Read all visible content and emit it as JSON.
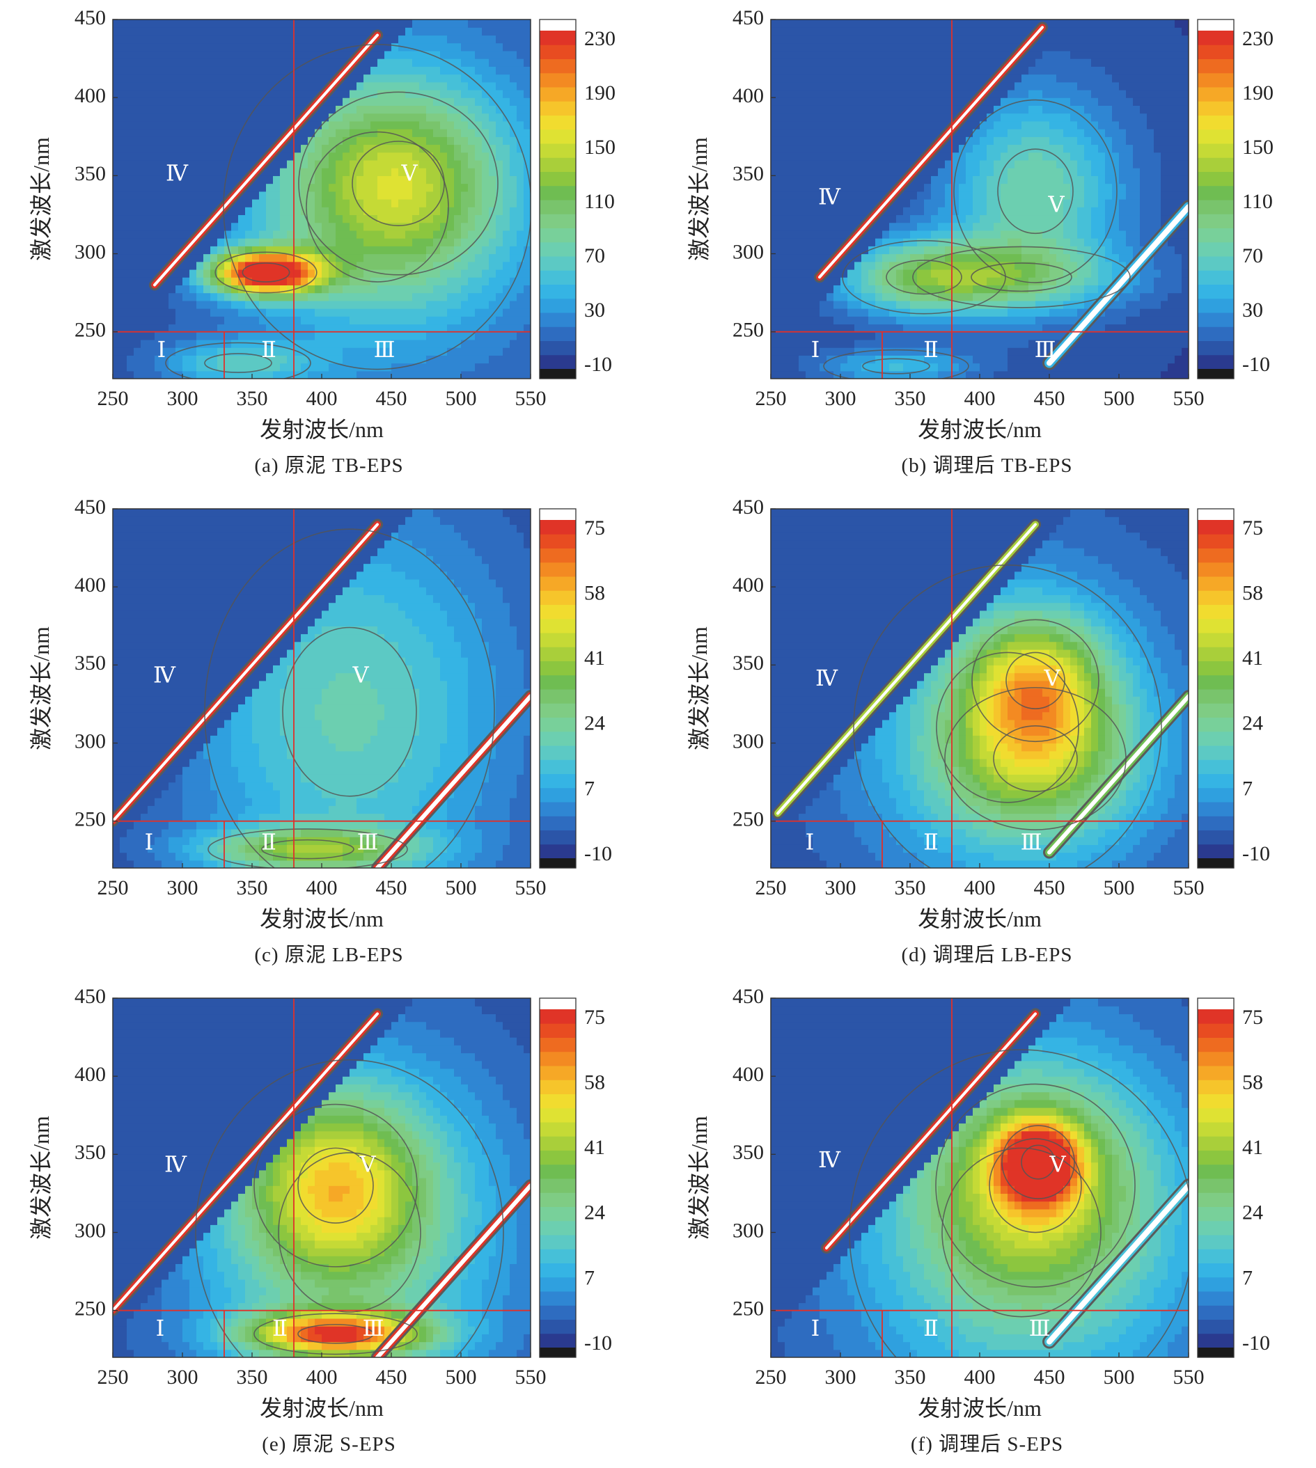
{
  "chart_data": [
    {
      "id": "a",
      "type": "heatmap",
      "caption": "(a) 原泥 TB-EPS",
      "xlabel": "发射波长/nm",
      "ylabel": "激发波长/nm",
      "xlim": [
        250,
        550
      ],
      "ylim": [
        220,
        450
      ],
      "xticks": [
        "250",
        "300",
        "350",
        "400",
        "450",
        "500",
        "550"
      ],
      "yticks": [
        "250",
        "300",
        "350",
        "400",
        "450"
      ],
      "colorbar": {
        "range": [
          -10,
          230
        ],
        "ticks": [
          "230",
          "190",
          "150",
          "110",
          "70",
          "30",
          "-10"
        ]
      },
      "divider_lines": {
        "excitation": 250,
        "emission_I_II": 330,
        "emission_II_III": 380
      },
      "regions": [
        {
          "label": "Ⅰ",
          "x": 285,
          "y": 237
        },
        {
          "label": "Ⅱ",
          "x": 362,
          "y": 237
        },
        {
          "label": "Ⅲ",
          "x": 445,
          "y": 237
        },
        {
          "label": "Ⅳ",
          "x": 296,
          "y": 350
        },
        {
          "label": "Ⅴ",
          "x": 463,
          "y": 350
        }
      ],
      "peaks": [
        {
          "ex": 288,
          "em": 360,
          "intensity": 225,
          "sx": 28,
          "sy": 10
        },
        {
          "ex": 345,
          "em": 455,
          "intensity": 85,
          "sx": 55,
          "sy": 45
        },
        {
          "ex": 330,
          "em": 440,
          "intensity": 50,
          "sx": 85,
          "sy": 80
        },
        {
          "ex": 230,
          "em": 340,
          "intensity": 45,
          "sx": 40,
          "sy": 10
        }
      ],
      "rayleigh": [
        {
          "offset": 0,
          "width": 6,
          "intensity": 240,
          "x0": 280,
          "x1": 440
        }
      ]
    },
    {
      "id": "b",
      "type": "heatmap",
      "caption": "(b) 调理后 TB-EPS",
      "xlabel": "发射波长/nm",
      "ylabel": "激发波长/nm",
      "xlim": [
        250,
        550
      ],
      "ylim": [
        220,
        450
      ],
      "xticks": [
        "250",
        "300",
        "350",
        "400",
        "450",
        "500",
        "550"
      ],
      "yticks": [
        "250",
        "300",
        "350",
        "400",
        "450"
      ],
      "colorbar": {
        "range": [
          -10,
          230
        ],
        "ticks": [
          "230",
          "190",
          "150",
          "110",
          "70",
          "30",
          "-10"
        ]
      },
      "divider_lines": {
        "excitation": 250,
        "emission_I_II": 330,
        "emission_II_III": 380
      },
      "regions": [
        {
          "label": "Ⅰ",
          "x": 282,
          "y": 237
        },
        {
          "label": "Ⅱ",
          "x": 365,
          "y": 237
        },
        {
          "label": "Ⅲ",
          "x": 447,
          "y": 237
        },
        {
          "label": "Ⅳ",
          "x": 292,
          "y": 335
        },
        {
          "label": "Ⅴ",
          "x": 455,
          "y": 330
        }
      ],
      "peaks": [
        {
          "ex": 285,
          "em": 360,
          "intensity": 80,
          "sx": 45,
          "sy": 18
        },
        {
          "ex": 340,
          "em": 440,
          "intensity": 70,
          "sx": 45,
          "sy": 45
        },
        {
          "ex": 285,
          "em": 430,
          "intensity": 45,
          "sx": 60,
          "sy": 15
        },
        {
          "ex": 228,
          "em": 340,
          "intensity": 40,
          "sx": 40,
          "sy": 8
        }
      ],
      "rayleigh": [
        {
          "offset": 0,
          "width": 6,
          "intensity": 240,
          "x0": 285,
          "x1": 445
        },
        {
          "offset": -220,
          "width": 10,
          "intensity": 40,
          "x0": 450,
          "x1": 550
        }
      ]
    },
    {
      "id": "c",
      "type": "heatmap",
      "caption": "(c) 原泥 LB-EPS",
      "xlabel": "发射波长/nm",
      "ylabel": "激发波长/nm",
      "xlim": [
        250,
        550
      ],
      "ylim": [
        220,
        450
      ],
      "xticks": [
        "250",
        "300",
        "350",
        "400",
        "450",
        "500",
        "550"
      ],
      "yticks": [
        "250",
        "300",
        "350",
        "400",
        "450"
      ],
      "colorbar": {
        "range": [
          -10,
          75
        ],
        "ticks": [
          "75",
          "58",
          "41",
          "24",
          "7",
          "-10"
        ]
      },
      "divider_lines": {
        "excitation": 250,
        "emission_I_II": 330,
        "emission_II_III": 380
      },
      "regions": [
        {
          "label": "Ⅰ",
          "x": 276,
          "y": 235
        },
        {
          "label": "Ⅱ",
          "x": 362,
          "y": 235
        },
        {
          "label": "Ⅲ",
          "x": 433,
          "y": 235
        },
        {
          "label": "Ⅳ",
          "x": 287,
          "y": 342
        },
        {
          "label": "Ⅴ",
          "x": 428,
          "y": 342
        }
      ],
      "peaks": [
        {
          "ex": 320,
          "em": 420,
          "intensity": 16,
          "sx": 80,
          "sy": 90
        },
        {
          "ex": 232,
          "em": 390,
          "intensity": 24,
          "sx": 55,
          "sy": 10
        }
      ],
      "rayleigh": [
        {
          "offset": 0,
          "width": 6,
          "intensity": 78,
          "x0": 250,
          "x1": 440
        },
        {
          "offset": -220,
          "width": 8,
          "intensity": 78,
          "x0": 440,
          "x1": 550
        }
      ]
    },
    {
      "id": "d",
      "type": "heatmap",
      "caption": "(d) 调理后 LB-EPS",
      "xlabel": "发射波长/nm",
      "ylabel": "激发波长/nm",
      "xlim": [
        250,
        550
      ],
      "ylim": [
        220,
        450
      ],
      "xticks": [
        "250",
        "300",
        "350",
        "400",
        "450",
        "500",
        "550"
      ],
      "yticks": [
        "250",
        "300",
        "350",
        "400",
        "450"
      ],
      "colorbar": {
        "range": [
          -10,
          75
        ],
        "ticks": [
          "75",
          "58",
          "41",
          "24",
          "7",
          "-10"
        ]
      },
      "divider_lines": {
        "excitation": 250,
        "emission_I_II": 330,
        "emission_II_III": 380
      },
      "regions": [
        {
          "label": "Ⅰ",
          "x": 278,
          "y": 235
        },
        {
          "label": "Ⅱ",
          "x": 365,
          "y": 235
        },
        {
          "label": "Ⅲ",
          "x": 437,
          "y": 235
        },
        {
          "label": "Ⅳ",
          "x": 290,
          "y": 340
        },
        {
          "label": "Ⅴ",
          "x": 452,
          "y": 340
        }
      ],
      "peaks": [
        {
          "ex": 340,
          "em": 440,
          "intensity": 28,
          "sx": 35,
          "sy": 30
        },
        {
          "ex": 290,
          "em": 440,
          "intensity": 20,
          "sx": 50,
          "sy": 35
        },
        {
          "ex": 310,
          "em": 420,
          "intensity": 12,
          "sx": 85,
          "sy": 80
        }
      ],
      "rayleigh": [
        {
          "offset": 0,
          "width": 6,
          "intensity": 40,
          "x0": 255,
          "x1": 440
        },
        {
          "offset": -220,
          "width": 8,
          "intensity": 35,
          "x0": 450,
          "x1": 550
        }
      ]
    },
    {
      "id": "e",
      "type": "heatmap",
      "caption": "(e) 原泥 S-EPS",
      "xlabel": "发射波长/nm",
      "ylabel": "激发波长/nm",
      "xlim": [
        250,
        550
      ],
      "ylim": [
        220,
        450
      ],
      "xticks": [
        "250",
        "300",
        "350",
        "400",
        "450",
        "500",
        "550"
      ],
      "yticks": [
        "250",
        "300",
        "350",
        "400",
        "450"
      ],
      "colorbar": {
        "range": [
          -10,
          75
        ],
        "ticks": [
          "75",
          "58",
          "41",
          "24",
          "7",
          "-10"
        ]
      },
      "divider_lines": {
        "excitation": 250,
        "emission_I_II": 330,
        "emission_II_III": 380
      },
      "regions": [
        {
          "label": "Ⅰ",
          "x": 284,
          "y": 237
        },
        {
          "label": "Ⅱ",
          "x": 370,
          "y": 237
        },
        {
          "label": "Ⅲ",
          "x": 437,
          "y": 237
        },
        {
          "label": "Ⅳ",
          "x": 295,
          "y": 342
        },
        {
          "label": "Ⅴ",
          "x": 433,
          "y": 342
        }
      ],
      "peaks": [
        {
          "ex": 330,
          "em": 410,
          "intensity": 28,
          "sx": 45,
          "sy": 40
        },
        {
          "ex": 300,
          "em": 420,
          "intensity": 18,
          "sx": 85,
          "sy": 85
        },
        {
          "ex": 235,
          "em": 410,
          "intensity": 50,
          "sx": 45,
          "sy": 10
        }
      ],
      "rayleigh": [
        {
          "offset": 0,
          "width": 6,
          "intensity": 78,
          "x0": 250,
          "x1": 440
        },
        {
          "offset": -220,
          "width": 8,
          "intensity": 78,
          "x0": 440,
          "x1": 550
        }
      ]
    },
    {
      "id": "f",
      "type": "heatmap",
      "caption": "(f) 调理后 S-EPS",
      "xlabel": "发射波长/nm",
      "ylabel": "激发波长/nm",
      "xlim": [
        250,
        550
      ],
      "ylim": [
        220,
        450
      ],
      "xticks": [
        "250",
        "300",
        "350",
        "400",
        "450",
        "500",
        "550"
      ],
      "yticks": [
        "250",
        "300",
        "350",
        "400",
        "450"
      ],
      "colorbar": {
        "range": [
          -10,
          75
        ],
        "ticks": [
          "75",
          "58",
          "41",
          "24",
          "7",
          "-10"
        ]
      },
      "divider_lines": {
        "excitation": 250,
        "emission_I_II": 330,
        "emission_II_III": 380
      },
      "regions": [
        {
          "label": "Ⅰ",
          "x": 282,
          "y": 237
        },
        {
          "label": "Ⅱ",
          "x": 365,
          "y": 237
        },
        {
          "label": "Ⅲ",
          "x": 443,
          "y": 237
        },
        {
          "label": "Ⅳ",
          "x": 292,
          "y": 345
        },
        {
          "label": "Ⅴ",
          "x": 456,
          "y": 342
        }
      ],
      "peaks": [
        {
          "ex": 345,
          "em": 442,
          "intensity": 48,
          "sx": 20,
          "sy": 18
        },
        {
          "ex": 330,
          "em": 440,
          "intensity": 22,
          "sx": 55,
          "sy": 50
        },
        {
          "ex": 300,
          "em": 430,
          "intensity": 16,
          "sx": 95,
          "sy": 90
        }
      ],
      "rayleigh": [
        {
          "offset": 0,
          "width": 6,
          "intensity": 78,
          "x0": 290,
          "x1": 440
        },
        {
          "offset": -220,
          "width": 10,
          "intensity": 12,
          "x0": 450,
          "x1": 550
        }
      ]
    }
  ]
}
